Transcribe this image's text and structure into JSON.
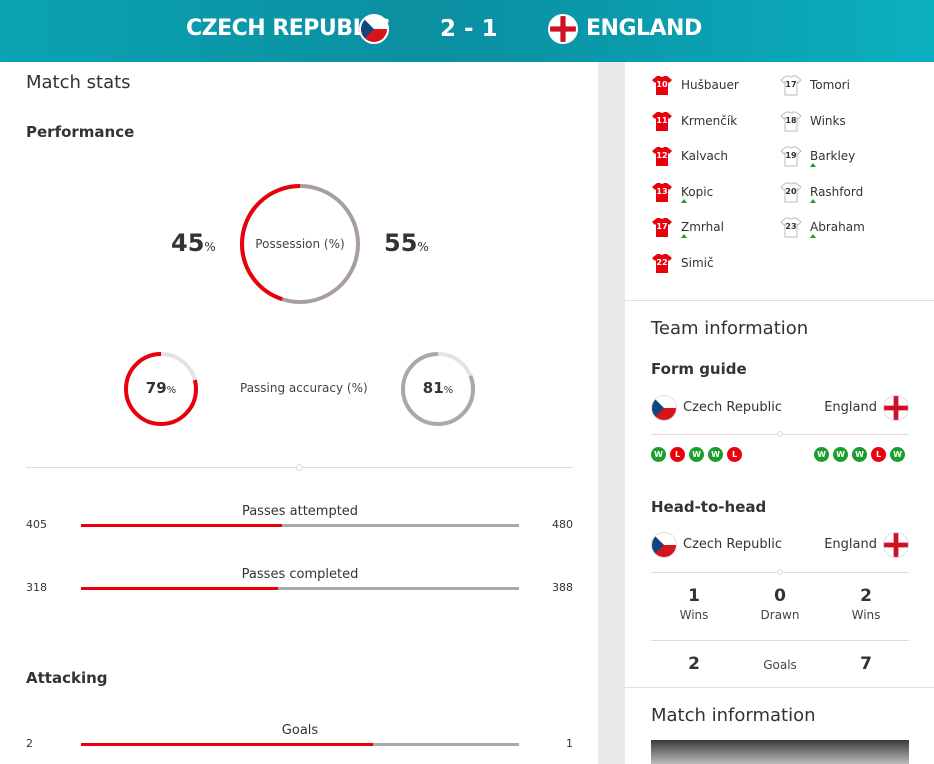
{
  "header": {
    "home_team": "CZECH REPUBLIC",
    "away_team": "ENGLAND",
    "score": "2 - 1"
  },
  "match_stats": {
    "title": "Match stats",
    "performance_title": "Performance",
    "possession": {
      "label": "Possession (%)",
      "home": "45",
      "away": "55",
      "home_value": 45,
      "away_value": 55
    },
    "passing_accuracy": {
      "label": "Passing accuracy (%)",
      "home": "79",
      "away": "81",
      "home_value": 79,
      "away_value": 81
    },
    "pct_symbol": "%",
    "rows": [
      {
        "label": "Passes attempted",
        "home": "405",
        "away": "480",
        "home_share": 0.458
      },
      {
        "label": "Passes completed",
        "home": "318",
        "away": "388",
        "home_share": 0.45
      }
    ],
    "attacking_title": "Attacking",
    "attacking_rows": [
      {
        "label": "Goals",
        "home": "2",
        "away": "1",
        "home_share": 0.667
      }
    ]
  },
  "lineups": {
    "home_subs": [
      {
        "number": "10",
        "name": "Hušbauer",
        "sub": false
      },
      {
        "number": "11",
        "name": "Krmenčík",
        "sub": false
      },
      {
        "number": "12",
        "name": "Kalvach",
        "sub": false
      },
      {
        "number": "13",
        "name": "Kopic",
        "sub": true
      },
      {
        "number": "17",
        "name": "Zmrhal",
        "sub": true
      },
      {
        "number": "22",
        "name": "Simič",
        "sub": false
      }
    ],
    "away_subs": [
      {
        "number": "17",
        "name": "Tomori",
        "sub": false
      },
      {
        "number": "18",
        "name": "Winks",
        "sub": false
      },
      {
        "number": "19",
        "name": "Barkley",
        "sub": true
      },
      {
        "number": "20",
        "name": "Rashford",
        "sub": true
      },
      {
        "number": "23",
        "name": "Abraham",
        "sub": true
      }
    ]
  },
  "team_information": {
    "title": "Team information",
    "form_guide": {
      "title": "Form guide",
      "home_team": "Czech Republic",
      "away_team": "England",
      "home_form": [
        "W",
        "L",
        "W",
        "W",
        "L"
      ],
      "away_form": [
        "W",
        "W",
        "W",
        "L",
        "W"
      ]
    },
    "head_to_head": {
      "title": "Head-to-head",
      "home_team": "Czech Republic",
      "away_team": "England",
      "home_wins": "1",
      "home_wins_label": "Wins",
      "drawn": "0",
      "drawn_label": "Drawn",
      "away_wins": "2",
      "away_wins_label": "Wins",
      "home_goals": "2",
      "goals_label": "Goals",
      "away_goals": "7"
    }
  },
  "match_information": {
    "title": "Match information"
  },
  "colors": {
    "accent_red": "#e8000b",
    "bar_grey": "#a9a9a9",
    "header_teal": "#0b98aa",
    "win_green": "#1a9e2d"
  }
}
